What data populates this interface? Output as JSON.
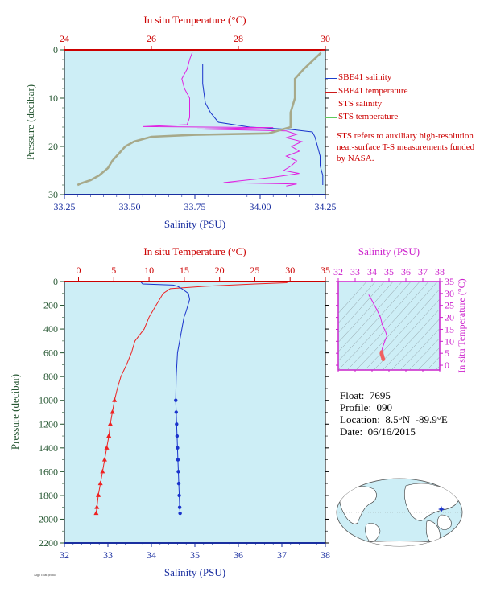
{
  "top_panel": {
    "title_top": "In situ Temperature (°C)",
    "xlabel_bottom": "Salinity (PSU)",
    "ylabel": "Pressure (decibar)"
  },
  "bottom_panel": {
    "title_top": "In situ Temperature (°C)",
    "xlabel_bottom": "Salinity (PSU)",
    "ylabel": "Pressure (decibar)"
  },
  "ts_panel": {
    "title_top": "Salinity (PSU)",
    "ylabel": "In situ Temperature (°C)"
  },
  "legend": {
    "items": [
      {
        "label": "SBE41 salinity",
        "color": "#1a3fcc"
      },
      {
        "label": "SBE41 temperature",
        "color": "#cc1a1a"
      },
      {
        "label": "STS salinity",
        "color": "#e020e0"
      },
      {
        "label": "STS temperature",
        "color": "#5ec95e"
      }
    ]
  },
  "note": "STS refers to auxiliary high-resolution near-surface T-S measurements funded by NASA.",
  "float_info": {
    "float": "Float:  7695",
    "profile": "Profile:  090",
    "location": "Location:  8.5°N  -89.9°E",
    "date": "Date:  06/16/2015"
  },
  "footer_tag": "Argo float profile",
  "colors": {
    "plot_bg": "#cdeef6",
    "temp_axis": "#cc0000",
    "sal_axis": "#1a2fa0",
    "pressure_axis": "#245530",
    "ts_axis": "#cc22cc",
    "temperature": "#ee2222",
    "salinity": "#1a33cc",
    "sts_salinity": "#e020e0",
    "sts_temperature": "#a7a98a"
  },
  "chart_data": [
    {
      "type": "line",
      "id": "near-surface",
      "x_bottom": {
        "label": "Salinity (PSU)",
        "range": [
          33.25,
          34.25
        ],
        "ticks": [
          "33.25",
          "33.50",
          "33.75",
          "34.00",
          "34.25"
        ]
      },
      "x_top": {
        "label": "In situ Temperature (°C)",
        "range": [
          24,
          30
        ],
        "ticks": [
          "24",
          "26",
          "28",
          "30"
        ]
      },
      "y": {
        "label": "Pressure (decibar)",
        "range": [
          0,
          30
        ],
        "ticks": [
          "0",
          "10",
          "20",
          "30"
        ],
        "inverted": true
      },
      "series": [
        {
          "name": "SBE41 salinity",
          "axis": "salinity",
          "points": [
            [
              33.78,
              3
            ],
            [
              33.78,
              7
            ],
            [
              33.79,
              11
            ],
            [
              33.81,
              13
            ],
            [
              33.84,
              15
            ],
            [
              33.96,
              16
            ],
            [
              34.12,
              16.5
            ],
            [
              34.2,
              17
            ],
            [
              34.21,
              18
            ],
            [
              34.22,
              20
            ],
            [
              34.23,
              22
            ],
            [
              34.23,
              24
            ],
            [
              34.24,
              26
            ],
            [
              34.24,
              28
            ]
          ]
        },
        {
          "name": "SBE41 temperature",
          "axis": "temperature",
          "points": [
            [
              30.0,
              0.1
            ],
            [
              29.9,
              0.2
            ]
          ]
        },
        {
          "name": "STS salinity",
          "axis": "salinity",
          "points": [
            [
              33.74,
              0.5
            ],
            [
              33.73,
              2
            ],
            [
              33.72,
              4
            ],
            [
              33.7,
              6
            ],
            [
              33.71,
              8
            ],
            [
              33.73,
              10
            ],
            [
              33.73,
              12
            ],
            [
              33.73,
              14
            ],
            [
              33.72,
              15.5
            ],
            [
              33.55,
              15.9
            ],
            [
              34.05,
              16.1
            ],
            [
              33.76,
              16.4
            ],
            [
              34.1,
              16.8
            ],
            [
              34.14,
              17.5
            ],
            [
              34.1,
              18.2
            ],
            [
              34.16,
              19
            ],
            [
              34.12,
              20
            ],
            [
              34.15,
              21
            ],
            [
              34.1,
              22
            ],
            [
              34.14,
              23
            ],
            [
              34.12,
              24
            ],
            [
              34.09,
              25
            ],
            [
              34.15,
              25.6
            ],
            [
              34.05,
              26.4
            ],
            [
              33.86,
              27.5
            ],
            [
              34.14,
              27.8
            ],
            [
              34.1,
              28.2
            ]
          ]
        },
        {
          "name": "STS temperature",
          "axis": "temperature",
          "points": [
            [
              29.9,
              0.6
            ],
            [
              29.5,
              4
            ],
            [
              29.3,
              6
            ],
            [
              29.3,
              10
            ],
            [
              29.2,
              13
            ],
            [
              29.2,
              16
            ],
            [
              28.7,
              17.3
            ],
            [
              27.0,
              17.6
            ],
            [
              26.0,
              18
            ],
            [
              25.6,
              19
            ],
            [
              25.4,
              20
            ],
            [
              25.3,
              21
            ],
            [
              25.2,
              22
            ],
            [
              25.1,
              23
            ],
            [
              25.0,
              24.5
            ],
            [
              24.8,
              26
            ],
            [
              24.6,
              27
            ],
            [
              24.4,
              27.6
            ],
            [
              24.3,
              28
            ]
          ]
        }
      ]
    },
    {
      "type": "line",
      "id": "full-profile",
      "x_bottom": {
        "label": "Salinity (PSU)",
        "range": [
          32,
          38
        ],
        "ticks": [
          "32",
          "33",
          "34",
          "35",
          "36",
          "37",
          "38"
        ]
      },
      "x_top": {
        "label": "In situ Temperature (°C)",
        "range": [
          -2,
          35
        ],
        "ticks": [
          "0",
          "5",
          "10",
          "15",
          "20",
          "25",
          "30",
          "35"
        ]
      },
      "y": {
        "label": "Pressure (decibar)",
        "range": [
          0,
          2200
        ],
        "ticks": [
          "0",
          "200",
          "400",
          "600",
          "800",
          "1000",
          "1200",
          "1400",
          "1600",
          "1800",
          "2000",
          "2200"
        ],
        "inverted": true
      },
      "series": [
        {
          "name": "SBE41 temperature",
          "axis": "temperature",
          "marker": "triangle",
          "marker_from": 1000,
          "points": [
            [
              29.8,
              0
            ],
            [
              29.5,
              10
            ],
            [
              25,
              20
            ],
            [
              18,
              40
            ],
            [
              13,
              60
            ],
            [
              12,
              100
            ],
            [
              11.5,
              150
            ],
            [
              11,
              200
            ],
            [
              10.5,
              250
            ],
            [
              10,
              300
            ],
            [
              9.3,
              400
            ],
            [
              8,
              500
            ],
            [
              7.5,
              600
            ],
            [
              6.8,
              700
            ],
            [
              6,
              800
            ],
            [
              5.5,
              900
            ],
            [
              5.1,
              1000
            ],
            [
              4.8,
              1100
            ],
            [
              4.5,
              1200
            ],
            [
              4.3,
              1300
            ],
            [
              4.0,
              1400
            ],
            [
              3.7,
              1500
            ],
            [
              3.4,
              1600
            ],
            [
              3.1,
              1700
            ],
            [
              2.8,
              1800
            ],
            [
              2.6,
              1900
            ],
            [
              2.5,
              1950
            ]
          ]
        },
        {
          "name": "SBE41 salinity",
          "axis": "salinity",
          "marker": "circle",
          "marker_from": 1000,
          "points": [
            [
              33.75,
              0
            ],
            [
              33.8,
              20
            ],
            [
              34.5,
              30
            ],
            [
              34.6,
              40
            ],
            [
              34.7,
              60
            ],
            [
              34.85,
              100
            ],
            [
              34.88,
              150
            ],
            [
              34.8,
              250
            ],
            [
              34.75,
              300
            ],
            [
              34.7,
              400
            ],
            [
              34.65,
              500
            ],
            [
              34.6,
              600
            ],
            [
              34.57,
              800
            ],
            [
              34.56,
              1000
            ],
            [
              34.57,
              1100
            ],
            [
              34.58,
              1200
            ],
            [
              34.59,
              1300
            ],
            [
              34.6,
              1400
            ],
            [
              34.61,
              1500
            ],
            [
              34.62,
              1600
            ],
            [
              34.63,
              1700
            ],
            [
              34.64,
              1800
            ],
            [
              34.65,
              1900
            ],
            [
              34.66,
              1950
            ]
          ]
        }
      ]
    },
    {
      "type": "scatter",
      "id": "ts-diagram",
      "x": {
        "label": "Salinity (PSU)",
        "range": [
          32,
          38
        ],
        "ticks": [
          "32",
          "33",
          "34",
          "35",
          "36",
          "37",
          "38"
        ]
      },
      "y": {
        "label": "In situ Temperature (°C)",
        "range": [
          -2,
          35
        ],
        "ticks": [
          "0",
          "5",
          "10",
          "15",
          "20",
          "25",
          "30",
          "35"
        ]
      },
      "series": [
        {
          "name": "profile",
          "points": [
            [
              33.8,
              29.5
            ],
            [
              34.0,
              27
            ],
            [
              34.3,
              23
            ],
            [
              34.5,
              20
            ],
            [
              34.6,
              17
            ],
            [
              34.8,
              14
            ],
            [
              34.88,
              12
            ],
            [
              34.8,
              11
            ],
            [
              34.7,
              9
            ],
            [
              34.6,
              7
            ],
            [
              34.57,
              5.5
            ],
            [
              34.56,
              5
            ],
            [
              34.58,
              4.5
            ],
            [
              34.6,
              4
            ],
            [
              34.62,
              3.5
            ],
            [
              34.65,
              2.8
            ],
            [
              34.66,
              2.5
            ]
          ]
        }
      ]
    },
    {
      "type": "scatter",
      "id": "location-map",
      "series": [
        {
          "name": "float position",
          "points": [
            [
              -89.9,
              8.5
            ]
          ]
        }
      ]
    }
  ]
}
